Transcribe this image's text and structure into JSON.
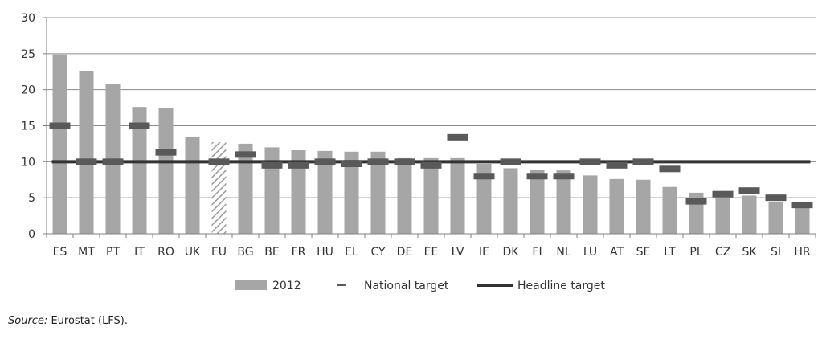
{
  "chart_data": {
    "type": "bar",
    "categories": [
      "ES",
      "MT",
      "PT",
      "IT",
      "RO",
      "UK",
      "EU",
      "BG",
      "BE",
      "FR",
      "HU",
      "EL",
      "CY",
      "DE",
      "EE",
      "LV",
      "IE",
      "DK",
      "FI",
      "NL",
      "LU",
      "AT",
      "SE",
      "LT",
      "PL",
      "CZ",
      "SK",
      "SI",
      "HR"
    ],
    "series": [
      {
        "name": "2012",
        "type": "bar",
        "values": [
          24.9,
          22.6,
          20.8,
          17.6,
          17.4,
          13.5,
          12.7,
          12.5,
          12.0,
          11.6,
          11.5,
          11.4,
          11.4,
          10.5,
          10.5,
          10.5,
          9.7,
          9.1,
          8.9,
          8.8,
          8.1,
          7.6,
          7.5,
          6.5,
          5.7,
          5.5,
          5.3,
          4.4,
          4.2
        ]
      },
      {
        "name": "National target",
        "type": "marker",
        "values": [
          15,
          10,
          10,
          15,
          11.3,
          null,
          10,
          11,
          9.5,
          9.5,
          10,
          9.7,
          10,
          10,
          9.5,
          13.4,
          8,
          10,
          8,
          8,
          10,
          9.5,
          10,
          9,
          4.5,
          5.5,
          6,
          5,
          4
        ]
      },
      {
        "name": "Headline target",
        "type": "line",
        "value": 10
      }
    ],
    "hatched_categories": [
      "EU"
    ],
    "ylim": [
      0,
      30
    ],
    "yticks": [
      "0",
      "5",
      "10",
      "15",
      "20",
      "25",
      "30"
    ],
    "grid": true,
    "legend_position": "bottom",
    "colors": {
      "bar": "#a6a6a6",
      "marker": "#595959",
      "headline": "#333333",
      "grid": "#8c8c8c",
      "hatch": "#999999"
    }
  },
  "source": {
    "label": "Source:",
    "text": " Eurostat (LFS)."
  }
}
